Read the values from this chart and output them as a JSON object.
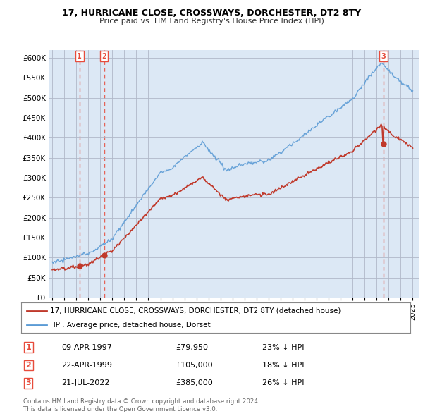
{
  "title": "17, HURRICANE CLOSE, CROSSWAYS, DORCHESTER, DT2 8TY",
  "subtitle": "Price paid vs. HM Land Registry's House Price Index (HPI)",
  "footnote1": "Contains HM Land Registry data © Crown copyright and database right 2024.",
  "footnote2": "This data is licensed under the Open Government Licence v3.0.",
  "legend_line1": "17, HURRICANE CLOSE, CROSSWAYS, DORCHESTER, DT2 8TY (detached house)",
  "legend_line2": "HPI: Average price, detached house, Dorset",
  "transactions": [
    {
      "label": "1",
      "date": "09-APR-1997",
      "price": 79950,
      "pct": "23% ↓ HPI",
      "x": 1997.27
    },
    {
      "label": "2",
      "date": "22-APR-1999",
      "price": 105000,
      "pct": "18% ↓ HPI",
      "x": 1999.31
    },
    {
      "label": "3",
      "date": "21-JUL-2022",
      "price": 385000,
      "pct": "26% ↓ HPI",
      "x": 2022.55
    }
  ],
  "fig_bg": "#ffffff",
  "plot_bg": "#dce8f5",
  "hpi_color": "#5b9bd5",
  "price_color": "#c0392b",
  "dashed_color": "#e74c3c",
  "ylim": [
    0,
    620000
  ],
  "yticks": [
    0,
    50000,
    100000,
    150000,
    200000,
    250000,
    300000,
    350000,
    400000,
    450000,
    500000,
    550000,
    600000
  ],
  "xlim": [
    1994.7,
    2025.5
  ],
  "xticks": [
    1995,
    1996,
    1997,
    1998,
    1999,
    2000,
    2001,
    2002,
    2003,
    2004,
    2005,
    2006,
    2007,
    2008,
    2009,
    2010,
    2011,
    2012,
    2013,
    2014,
    2015,
    2016,
    2017,
    2018,
    2019,
    2020,
    2021,
    2022,
    2023,
    2024,
    2025
  ]
}
